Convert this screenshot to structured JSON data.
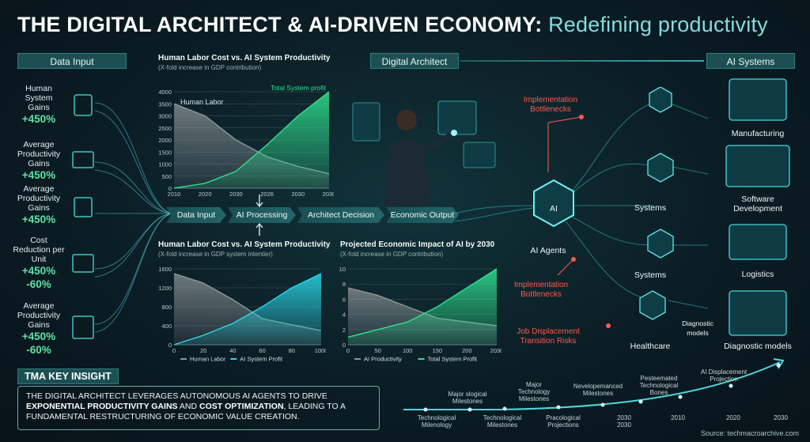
{
  "title": {
    "main": "THE DIGITAL ARCHITECT & AI-DRIVEN ECONOMY:",
    "sub": "Redefining productivity"
  },
  "headers": {
    "data_input": "Data Input",
    "digital_architect": "Digital Architect",
    "ai_systems": "AI Systems"
  },
  "left_items": [
    {
      "label": "Human System Gains",
      "values": [
        "+450%"
      ]
    },
    {
      "label": "Average Productivity Gains",
      "values": [
        "+450%"
      ]
    },
    {
      "label": "Average Productivity Gains",
      "values": [
        "+450%"
      ]
    },
    {
      "label": "Cost Reduction per Unit",
      "values": [
        "+450%",
        "-60%"
      ]
    },
    {
      "label": "Average Productivity Gains",
      "values": [
        "+450%",
        "-60%"
      ]
    }
  ],
  "flow_steps": [
    "Data Input",
    "AI Processing",
    "Architect Decision",
    "Economic Output"
  ],
  "chart_data": [
    {
      "type": "area",
      "title": "Human Labor Cost vs. AI System Productivity",
      "subtitle": "(X-fold increase in GDP contribution)",
      "x": [
        "2010",
        "2020",
        "2030",
        "2026",
        "2030",
        "2030"
      ],
      "ylim": [
        0,
        4000
      ],
      "yticks": [
        0,
        500,
        1000,
        1500,
        2000,
        2500,
        3000,
        3500,
        4000
      ],
      "annotations": [
        "Human Labor",
        "Total System profit"
      ],
      "series": [
        {
          "name": "Human Labor",
          "values": [
            3500,
            3000,
            2000,
            1300,
            900,
            600
          ]
        },
        {
          "name": "Total System profit",
          "values": [
            0,
            200,
            700,
            1800,
            3000,
            4000
          ]
        }
      ]
    },
    {
      "type": "area",
      "title": "Human Labor Cost vs. AI System Productivity",
      "subtitle": "(X-fold increase in GDP system intentier)",
      "x": [
        0,
        20,
        40,
        60,
        80,
        100
      ],
      "xticks": [
        0,
        20,
        40,
        60,
        80,
        1000
      ],
      "ylim": [
        0,
        1600
      ],
      "yticks": [
        0,
        400,
        800,
        1200,
        1600
      ],
      "legend": "bottom",
      "series": [
        {
          "name": "Human Labor",
          "values": [
            1500,
            1300,
            950,
            550,
            420,
            300
          ]
        },
        {
          "name": "AI System Profit",
          "values": [
            0,
            200,
            450,
            800,
            1200,
            1500
          ]
        }
      ]
    },
    {
      "type": "area",
      "title": "Projected Economic Impact of AI by 2030",
      "subtitle": "(X-fold increase in GDP contribution)",
      "x": [
        0,
        50,
        100,
        150,
        200,
        2030
      ],
      "xticks": [
        0,
        50,
        100,
        150,
        200,
        2030
      ],
      "ylim": [
        0,
        10
      ],
      "yticks": [
        0,
        2,
        4,
        6,
        8,
        10
      ],
      "legend": "bottom",
      "series": [
        {
          "name": "AI Productivity",
          "values": [
            7.5,
            6.5,
            5,
            3.5,
            3,
            2.5
          ]
        },
        {
          "name": "Total System Profit",
          "values": [
            1,
            2,
            3,
            5,
            7.5,
            10
          ]
        }
      ]
    }
  ],
  "center": {
    "ai_node": "AI",
    "ai_agents": "AI Agents",
    "red_labels": [
      "Implementation Bottlenecks",
      "Implementation Bottlenecks",
      "Job Displacement Transition Risks"
    ],
    "nodes": [
      "Systems",
      "Systems",
      "Healthcare"
    ],
    "diagnostic_models_small": "Diagnostic models"
  },
  "ai_systems": [
    "Manufacturing",
    "Software Development",
    "Logistics",
    "Diagnostic models"
  ],
  "insight": {
    "tag": "TMA KEY INSIGHT",
    "text_1": "THE DIGITAL ARCHITECT LEVERAGES AUTONOMOUS AI AGENTS TO DRIVE ",
    "bold_1": "EXPONENTIAL PRODUCTIVITY GAINS",
    "text_2": " AND ",
    "bold_2": "COST OPTIMIZATION",
    "text_3": ", LEADING TO A FUNDAMENTAL RESTRUCTURING OF ECONOMIC VALUE CREATION."
  },
  "timeline": {
    "top": [
      "Major slogical Milestones",
      "Major Technology Milestones",
      "Nevelopemanced Milestones",
      "Pesteemated Technological Bones",
      "AI Displacement Projection"
    ],
    "bottom": [
      "Technological Milenology",
      "Technological Milestones",
      "Pracological Projections",
      "2030 2030",
      "2010",
      "2020",
      "2030"
    ]
  },
  "source": "Source: techmacroarchive.com",
  "colors": {
    "teal": "#27d8c6",
    "green": "#2fe08f",
    "cyan": "#2ad7e8",
    "gray": "#8d9699",
    "red": "#ff5a4f"
  }
}
